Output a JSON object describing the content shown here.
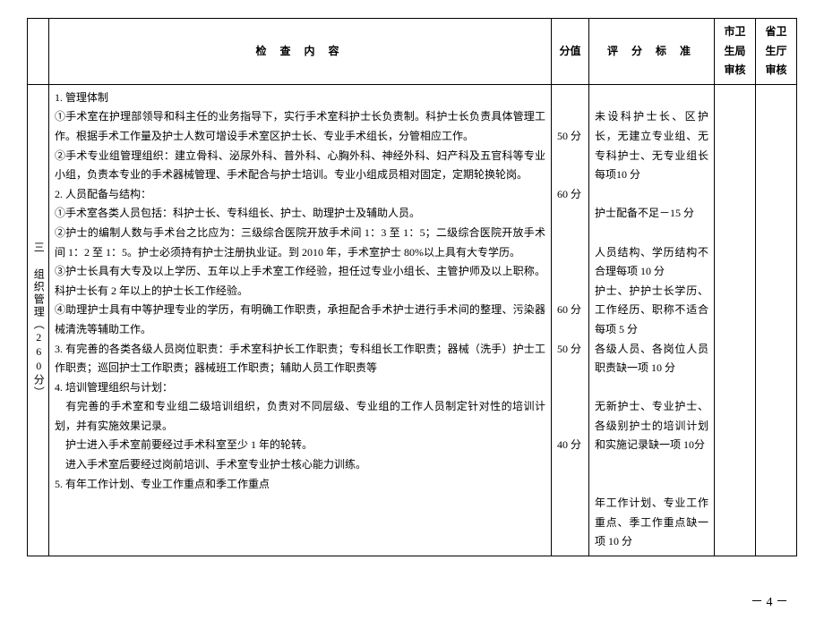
{
  "headers": {
    "content": "检 查 内 容",
    "score": "分值",
    "standard": "评 分 标 准",
    "city": "市卫生局审核",
    "province": "省卫生厅审核"
  },
  "category": "三 组织管理（260分）",
  "content_lines": [
    "1. 管理体制",
    "①手术室在护理部领导和科主任的业务指导下，实行手术室科护士长负责制。科护士长负责具体管理工作。根据手术工作量及护士人数可增设手术室区护士长、专业手术组长，分管相应工作。",
    "②手术专业组管理组织：建立骨科、泌尿外科、普外科、心胸外科、神经外科、妇产科及五官科等专业小组，负责本专业的手术器械管理、手术配合与护士培训。专业小组成员相对固定，定期轮换轮岗。",
    "2. 人员配备与结构：",
    "①手术室各类人员包括：科护士长、专科组长、护士、助理护士及辅助人员。",
    "②护士的编制人数与手术台之比应为：三级综合医院开放手术间 1：3 至 1：5；二级综合医院开放手术间 1：2 至 1：5。护士必须持有护士注册执业证。到 2010 年，手术室护士 80%以上具有大专学历。",
    "③护士长具有大专及以上学历、五年以上手术室工作经验，担任过专业小组长、主管护师及以上职称。科护士长有 2 年以上的护士长工作经验。",
    "④助理护士具有中等护理专业的学历，有明确工作职责，承担配合手术护士进行手术间的整理、污染器械清洗等辅助工作。",
    "3. 有完善的各类各级人员岗位职责：手术室科护长工作职责；专科组长工作职责；器械（洗手）护士工作职责；巡回护士工作职责；器械班工作职责；辅助人员工作职责等",
    "4. 培训管理组织与计划：",
    "　有完善的手术室和专业组二级培训组织，负责对不同层级、专业组的工作人员制定针对性的培训计划，并有实施效果记录。",
    "　护士进入手术室前要经过手术科室至少 1 年的轮转。",
    "　进入手术室后要经过岗前培训、手术室专业护士核心能力训练。",
    "5. 有年工作计划、专业工作重点和季工作重点"
  ],
  "scores": "\n\n50 分\n\n\n60 分\n\n\n\n\n\n60 分\n\n50 分\n\n\n\n\n40 分",
  "standards": "\n未设科护士长、区护长，无建立专业组、无专科护士、无专业组长每项10 分\n\n护士配备不足－15 分\n\n人员结构、学历结构不合理每项 10 分\n护士、护护士长学历、工作经历、职称不适合每项 5 分\n各级人员、各岗位人员职责缺一项 10 分\n\n无新护士、专业护士、各级别护士的培训计划和实施记录缺一项 10分\n\n\n年工作计划、专业工作重点、季工作重点缺一项 10 分",
  "page_number": "－ 4 －"
}
